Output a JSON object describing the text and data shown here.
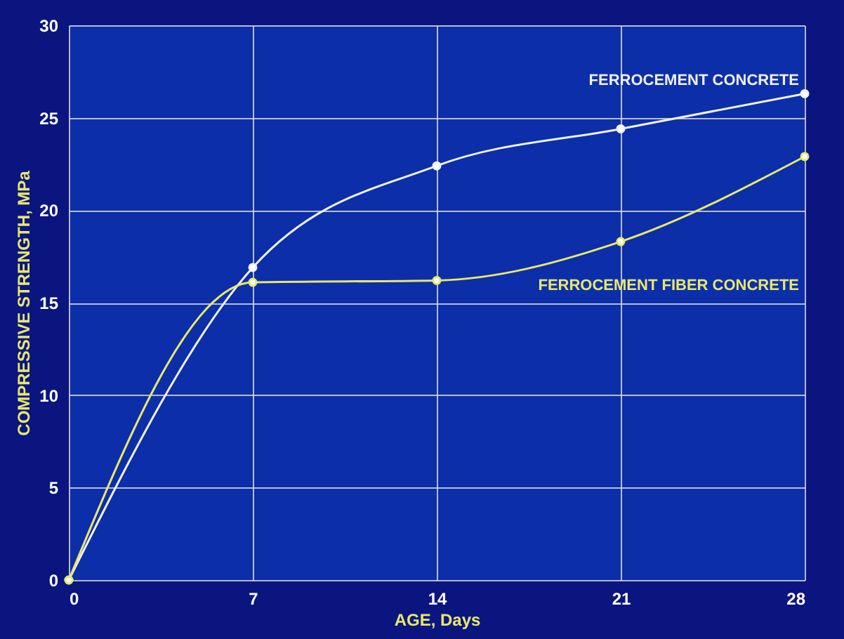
{
  "chart_data": {
    "type": "line",
    "xlabel": "AGE, Days",
    "ylabel": "COMPRESSIVE STRENGTH, MPa",
    "x": [
      0,
      7,
      14,
      21,
      28
    ],
    "series": [
      {
        "name": "FERROCEMENT CONCRETE",
        "color": "#f0f0f0",
        "values": [
          0,
          16.9,
          22.4,
          24.4,
          26.3
        ]
      },
      {
        "name": "FERROCEMENT FIBER CONCRETE",
        "color": "#e8e86a",
        "values": [
          0,
          16.1,
          16.2,
          18.3,
          22.9
        ]
      }
    ],
    "xlim": [
      0,
      28
    ],
    "xticks": [
      0,
      7,
      14,
      21,
      28
    ],
    "ylim": [
      0,
      30
    ],
    "yticks": [
      0,
      5,
      10,
      15,
      20,
      25,
      30
    ],
    "grid": true,
    "legend": false,
    "marker": "circle",
    "line_style": "solid"
  }
}
